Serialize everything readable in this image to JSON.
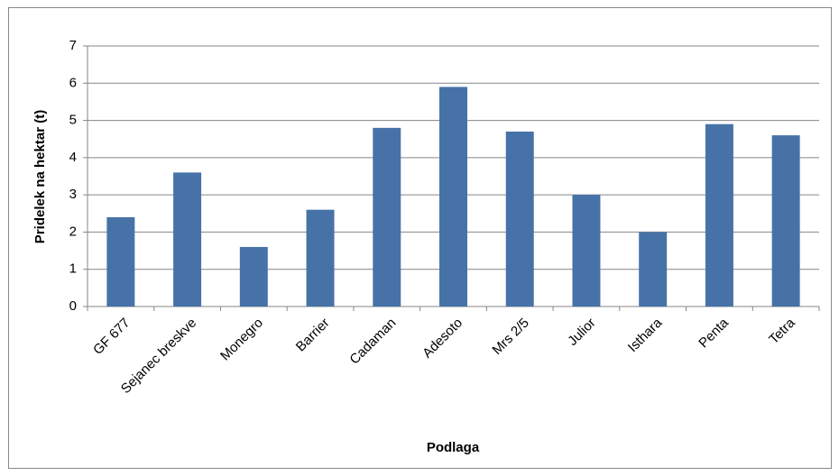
{
  "chart_data": {
    "type": "bar",
    "x_label": "Podlaga",
    "y_label": "Pridelek na hektar (t)",
    "categories": [
      "GF 677",
      "Sejanec breskve",
      "Monegro",
      "Barrier",
      "Cadaman",
      "Adesoto",
      "Mrs 2/5",
      "Julior",
      "Isthara",
      "Penta",
      "Tetra"
    ],
    "values": [
      2.4,
      3.6,
      1.6,
      2.6,
      4.8,
      5.9,
      4.7,
      3.0,
      2.0,
      4.9,
      4.6
    ],
    "color": "#4672a8",
    "ylim": [
      0,
      7
    ],
    "yticks": [
      0,
      1,
      2,
      3,
      4,
      5,
      6,
      7
    ],
    "grid": true
  }
}
